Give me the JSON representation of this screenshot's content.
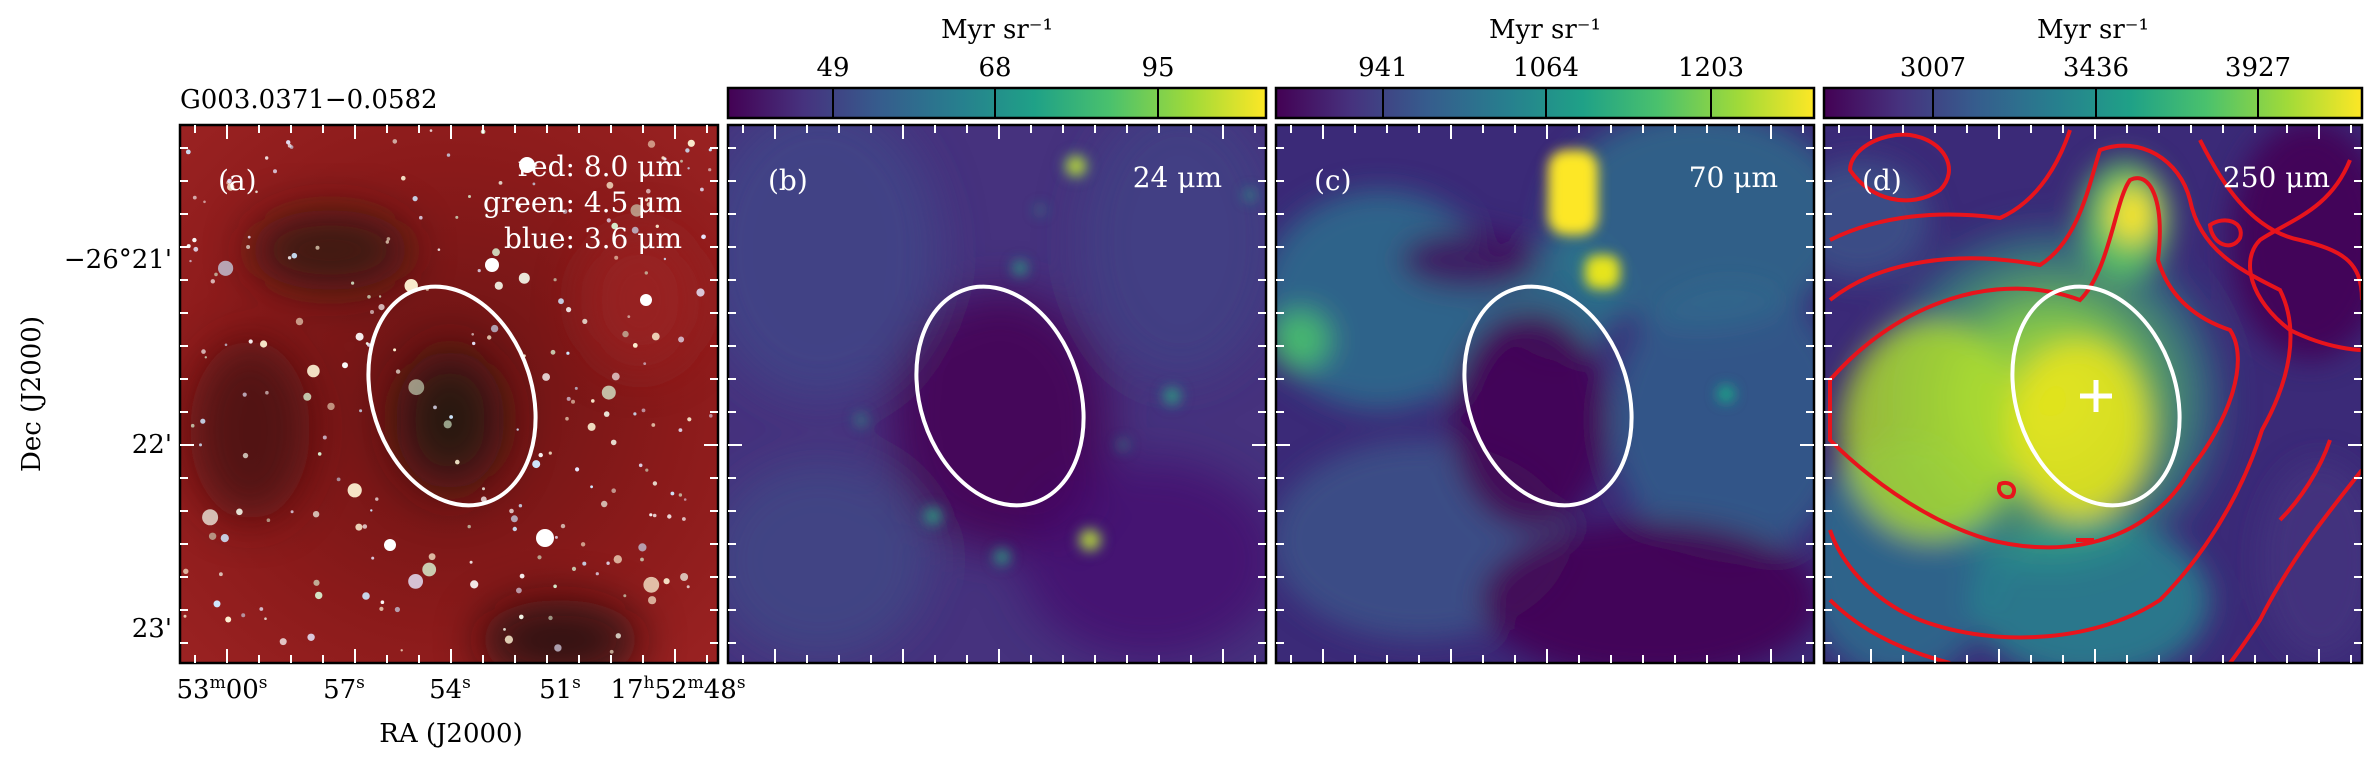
{
  "source_id": "G003.0371−0.0582",
  "axes": {
    "ylabel": "Dec (J2000)",
    "xlabel": "RA (J2000)",
    "dec_ticks": [
      "−26°21'",
      "22'",
      "23'"
    ],
    "ra_ticks": [
      {
        "main": "53",
        "sup1": "m",
        "sec": "00",
        "sup2": "s"
      },
      {
        "main": "57",
        "sup2": "s"
      },
      {
        "main": "54",
        "sup2": "s"
      },
      {
        "main": "51",
        "sup2": "s"
      },
      {
        "main": "17",
        "sup1": "h",
        "sec": "52",
        "sup2": "m",
        "tail": "48",
        "sup3": "s"
      }
    ]
  },
  "panels": [
    {
      "id": "a",
      "letter": "(a)",
      "rgb_labels": [
        "red: 8.0 μm",
        "green: 4.5 μm",
        "blue: 3.6 μm"
      ]
    },
    {
      "id": "b",
      "letter": "(b)",
      "band": "24 μm",
      "colorbar": {
        "unit": "Myr sr⁻¹",
        "ticks": [
          "49",
          "68",
          "95"
        ]
      }
    },
    {
      "id": "c",
      "letter": "(c)",
      "band": "70 μm",
      "colorbar": {
        "unit": "Myr sr⁻¹",
        "ticks": [
          "941",
          "1064",
          "1203"
        ]
      }
    },
    {
      "id": "d",
      "letter": "(d)",
      "band": "250 μm",
      "colorbar": {
        "unit": "Myr sr⁻¹",
        "ticks": [
          "3007",
          "3436",
          "3927"
        ]
      }
    }
  ],
  "colors": {
    "viridis": [
      "#440154",
      "#46327e",
      "#365c8d",
      "#277f8e",
      "#1fa187",
      "#4ac16d",
      "#a0da39",
      "#fde725"
    ],
    "ellipse": "#ffffff",
    "contour": "#e8141c",
    "rgb_background": "#7a1414"
  }
}
